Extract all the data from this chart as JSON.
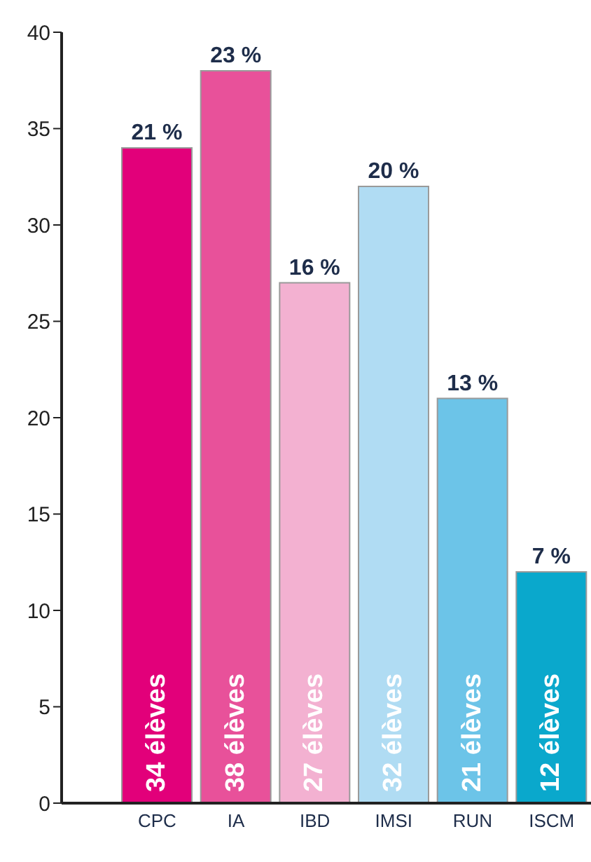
{
  "chart_data": {
    "type": "bar",
    "categories": [
      "CPC",
      "IA",
      "IBD",
      "IMSI",
      "RUN",
      "ISCM"
    ],
    "values": [
      34,
      38,
      27,
      32,
      21,
      12
    ],
    "colors": [
      "#e2007a",
      "#e8519a",
      "#f3b1d1",
      "#b0dcf3",
      "#6cc4e8",
      "#0aa8cc"
    ],
    "value_labels": [
      "34 élèves",
      "38 élèves",
      "27 élèves",
      "32 élèves",
      "21 élèves",
      "12 élèves"
    ],
    "annotations": [
      "21 %",
      "23 %",
      "16 %",
      "20 %",
      "13 %",
      "7 %"
    ],
    "ylim": [
      0,
      40
    ],
    "yticks": [
      0,
      5,
      10,
      15,
      20,
      25,
      30,
      35,
      40
    ],
    "grid": false,
    "legend": false
  }
}
